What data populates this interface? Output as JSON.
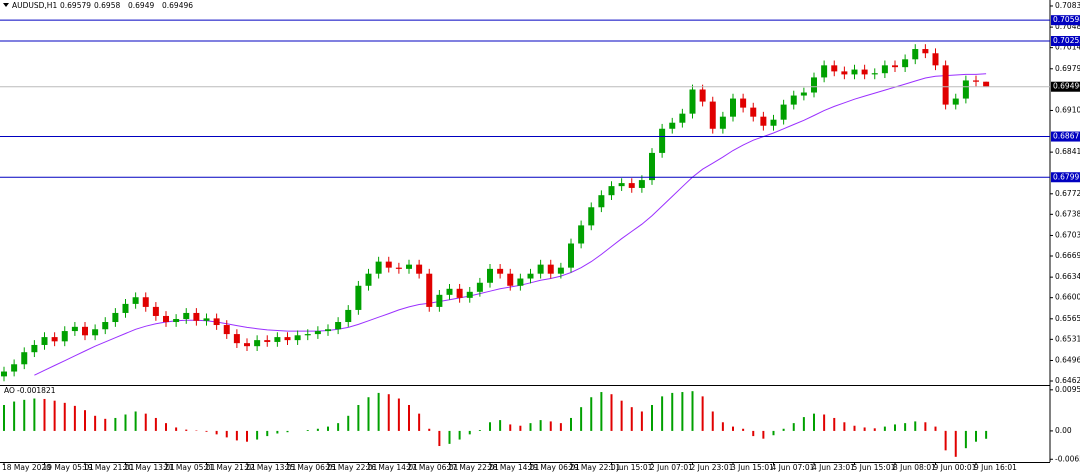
{
  "chart_data": [
    {
      "type": "candlestick",
      "symbol": "AUDUSD,H1",
      "categories": [
        "18 May 2020",
        null,
        null,
        null,
        "19 May 05:01",
        null,
        null,
        null,
        "19 May 21:01",
        null,
        null,
        null,
        "20 May 13:01",
        null,
        null,
        null,
        "21 May 05:01",
        null,
        null,
        null,
        "21 May 21:01",
        null,
        null,
        null,
        "22 May 13:01",
        null,
        null,
        null,
        "25 May 06:01",
        null,
        null,
        null,
        "25 May 22:01",
        null,
        null,
        null,
        "26 May 14:01",
        null,
        null,
        null,
        "27 May 06:01",
        null,
        null,
        null,
        "27 May 22:01",
        null,
        null,
        null,
        "28 May 14:01",
        null,
        null,
        null,
        "29 May 06:01",
        null,
        null,
        null,
        "29 May 22:01",
        null,
        null,
        null,
        "1 Jun 15:01",
        null,
        null,
        null,
        "2 Jun 07:01",
        null,
        null,
        null,
        "2 Jun 23:01",
        null,
        null,
        null,
        "3 Jun 15:01",
        null,
        null,
        null,
        "4 Jun 07:01",
        null,
        null,
        null,
        "4 Jun 23:01",
        null,
        null,
        null,
        "5 Jun 15:01",
        null,
        null,
        null,
        "8 Jun 08:01",
        null,
        null,
        null,
        "9 Jun 00:01",
        null,
        null,
        null,
        "9 Jun 16:01",
        null
      ],
      "open": [
        0.647,
        0.6478,
        0.649,
        0.651,
        0.6522,
        0.6535,
        0.6528,
        0.6545,
        0.6552,
        0.6538,
        0.6548,
        0.656,
        0.6575,
        0.659,
        0.6601,
        0.6585,
        0.657,
        0.656,
        0.6565,
        0.6575,
        0.6562,
        0.6566,
        0.6555,
        0.654,
        0.6525,
        0.652,
        0.653,
        0.6527,
        0.6535,
        0.653,
        0.6538,
        0.654,
        0.6545,
        0.6548,
        0.656,
        0.658,
        0.662,
        0.664,
        0.666,
        0.665,
        0.6648,
        0.6655,
        0.664,
        0.6585,
        0.6605,
        0.6615,
        0.66,
        0.661,
        0.6625,
        0.6648,
        0.664,
        0.662,
        0.6632,
        0.664,
        0.6655,
        0.664,
        0.665,
        0.669,
        0.672,
        0.675,
        0.677,
        0.6785,
        0.679,
        0.6782,
        0.6795,
        0.684,
        0.688,
        0.689,
        0.6905,
        0.6945,
        0.6925,
        0.688,
        0.69,
        0.693,
        0.6915,
        0.69,
        0.6885,
        0.6895,
        0.692,
        0.6935,
        0.694,
        0.6965,
        0.6985,
        0.6975,
        0.697,
        0.6978,
        0.697,
        0.6972,
        0.6985,
        0.6982,
        0.6995,
        0.7012,
        0.7005,
        0.6985,
        0.692,
        0.693,
        0.696,
        0.69579
      ],
      "high": [
        0.6486,
        0.6498,
        0.6518,
        0.653,
        0.6543,
        0.6543,
        0.6553,
        0.656,
        0.656,
        0.6556,
        0.6568,
        0.6583,
        0.6598,
        0.6609,
        0.6609,
        0.6593,
        0.6578,
        0.6573,
        0.6583,
        0.6583,
        0.6574,
        0.6574,
        0.6563,
        0.6548,
        0.6533,
        0.6538,
        0.6538,
        0.6543,
        0.6543,
        0.6546,
        0.6548,
        0.6553,
        0.6556,
        0.6568,
        0.6588,
        0.6628,
        0.6648,
        0.6668,
        0.6668,
        0.6658,
        0.6663,
        0.6663,
        0.6648,
        0.6613,
        0.6623,
        0.6623,
        0.6618,
        0.6633,
        0.6656,
        0.6656,
        0.6648,
        0.664,
        0.6648,
        0.6663,
        0.6663,
        0.6658,
        0.6698,
        0.6728,
        0.6758,
        0.6778,
        0.6793,
        0.6798,
        0.6798,
        0.6803,
        0.6848,
        0.6888,
        0.6898,
        0.6913,
        0.6953,
        0.6953,
        0.6933,
        0.6908,
        0.6938,
        0.6938,
        0.6923,
        0.6908,
        0.6903,
        0.6928,
        0.6943,
        0.6948,
        0.6973,
        0.6993,
        0.6993,
        0.6983,
        0.6986,
        0.6986,
        0.698,
        0.6993,
        0.6993,
        0.7003,
        0.702,
        0.702,
        0.7013,
        0.6993,
        0.6938,
        0.6968,
        0.6968,
        0.6958
      ],
      "low": [
        0.6462,
        0.647,
        0.6482,
        0.6502,
        0.6514,
        0.652,
        0.652,
        0.6537,
        0.653,
        0.653,
        0.654,
        0.6552,
        0.6567,
        0.6582,
        0.6577,
        0.6562,
        0.6552,
        0.6552,
        0.6557,
        0.6554,
        0.6554,
        0.6547,
        0.6532,
        0.6517,
        0.6512,
        0.6512,
        0.6519,
        0.6519,
        0.6522,
        0.6522,
        0.653,
        0.6532,
        0.6537,
        0.654,
        0.6552,
        0.6572,
        0.6612,
        0.6632,
        0.6642,
        0.664,
        0.664,
        0.6632,
        0.6577,
        0.6577,
        0.6597,
        0.6592,
        0.6592,
        0.6602,
        0.6617,
        0.6632,
        0.6612,
        0.6612,
        0.6624,
        0.6632,
        0.6632,
        0.6632,
        0.6642,
        0.6682,
        0.6712,
        0.6742,
        0.6762,
        0.6777,
        0.6774,
        0.6774,
        0.6787,
        0.6832,
        0.6872,
        0.6882,
        0.6897,
        0.6917,
        0.6872,
        0.6872,
        0.6892,
        0.6907,
        0.6892,
        0.6877,
        0.6877,
        0.6887,
        0.6912,
        0.6927,
        0.6932,
        0.6957,
        0.6967,
        0.6962,
        0.6962,
        0.6962,
        0.6962,
        0.6964,
        0.6974,
        0.6974,
        0.6987,
        0.6997,
        0.6977,
        0.6912,
        0.6912,
        0.6922,
        0.695,
        0.6949
      ],
      "close": [
        0.6478,
        0.649,
        0.651,
        0.6522,
        0.6535,
        0.6528,
        0.6545,
        0.6552,
        0.6538,
        0.6548,
        0.656,
        0.6575,
        0.659,
        0.6601,
        0.6585,
        0.657,
        0.656,
        0.6565,
        0.6575,
        0.6562,
        0.6566,
        0.6555,
        0.654,
        0.6525,
        0.652,
        0.653,
        0.6527,
        0.6535,
        0.653,
        0.6538,
        0.654,
        0.6545,
        0.6548,
        0.656,
        0.658,
        0.662,
        0.664,
        0.666,
        0.665,
        0.6648,
        0.6655,
        0.664,
        0.6585,
        0.6605,
        0.6615,
        0.66,
        0.661,
        0.6625,
        0.6648,
        0.664,
        0.662,
        0.6632,
        0.664,
        0.6655,
        0.664,
        0.665,
        0.669,
        0.672,
        0.675,
        0.677,
        0.6785,
        0.679,
        0.6782,
        0.6795,
        0.684,
        0.688,
        0.689,
        0.6905,
        0.6945,
        0.6925,
        0.688,
        0.69,
        0.693,
        0.6915,
        0.69,
        0.6885,
        0.6895,
        0.692,
        0.6935,
        0.694,
        0.6965,
        0.6985,
        0.6975,
        0.697,
        0.6978,
        0.697,
        0.6972,
        0.6985,
        0.6982,
        0.6995,
        0.7012,
        0.7005,
        0.6985,
        0.692,
        0.693,
        0.696,
        0.69579,
        0.69496
      ],
      "up_color": "#00a000",
      "down_color": "#e00000",
      "series": [
        {
          "color": "#9b30ff",
          "values": [
            null,
            null,
            null,
            0.6472,
            0.648,
            0.6488,
            0.6496,
            0.6504,
            0.6512,
            0.652,
            0.6527,
            0.6534,
            0.6541,
            0.6548,
            0.6553,
            0.6557,
            0.656,
            0.6562,
            0.6563,
            0.6563,
            0.6562,
            0.656,
            0.6557,
            0.6554,
            0.6551,
            0.6549,
            0.6547,
            0.6546,
            0.6545,
            0.6545,
            0.6545,
            0.6545,
            0.6546,
            0.6548,
            0.6551,
            0.6556,
            0.6562,
            0.6568,
            0.6574,
            0.658,
            0.6585,
            0.6589,
            0.6591,
            0.6594,
            0.6597,
            0.66,
            0.6603,
            0.6607,
            0.6611,
            0.6615,
            0.6618,
            0.6621,
            0.6625,
            0.6629,
            0.6632,
            0.6636,
            0.6642,
            0.665,
            0.666,
            0.6672,
            0.6685,
            0.6698,
            0.671,
            0.6722,
            0.6736,
            0.6752,
            0.6768,
            0.6784,
            0.68,
            0.6813,
            0.6823,
            0.6833,
            0.6844,
            0.6853,
            0.6861,
            0.6867,
            0.6873,
            0.688,
            0.6887,
            0.6894,
            0.6902,
            0.691,
            0.6917,
            0.6923,
            0.6929,
            0.6934,
            0.6939,
            0.6944,
            0.6949,
            0.6954,
            0.6959,
            0.6964,
            0.6967,
            0.6968,
            0.6969,
            0.697,
            0.697,
            0.6971
          ]
        }
      ],
      "levels": {
        "color": "#0000c0",
        "values": [
          0.70598,
          0.70253,
          0.68671,
          0.67997
        ]
      },
      "ylim": [
        0.64557,
        0.70932
      ],
      "yticks": [
        0.70833,
        0.70483,
        0.70143,
        0.69793,
        0.69103,
        0.68413,
        0.67723,
        0.67383,
        0.67033,
        0.66693,
        0.66343,
        0.66003,
        0.65653,
        0.65313,
        0.64963,
        0.64623
      ],
      "grid": false
    },
    {
      "type": "histogram",
      "title": "AO",
      "values": [
        0.006,
        0.0068,
        0.0072,
        0.0075,
        0.0074,
        0.007,
        0.0065,
        0.0058,
        0.0048,
        0.0035,
        0.0028,
        0.003,
        0.0038,
        0.0045,
        0.004,
        0.003,
        0.0018,
        0.0008,
        0.0003,
        0.0001,
        -0.0002,
        -0.0008,
        -0.0015,
        -0.0022,
        -0.0025,
        -0.002,
        -0.0012,
        -0.0006,
        -0.0003,
        0.0,
        0.0002,
        0.0005,
        0.001,
        0.0018,
        0.0035,
        0.006,
        0.0078,
        0.0088,
        0.0085,
        0.0075,
        0.006,
        0.004,
        0.0005,
        -0.0035,
        -0.003,
        -0.002,
        -0.0008,
        0.0002,
        0.002,
        0.0025,
        0.0015,
        0.0012,
        0.0018,
        0.0025,
        0.0022,
        0.0018,
        0.003,
        0.0055,
        0.0078,
        0.009,
        0.0085,
        0.007,
        0.0055,
        0.0045,
        0.006,
        0.008,
        0.0088,
        0.009,
        0.0092,
        0.008,
        0.0045,
        0.002,
        0.001,
        0.0005,
        -0.0012,
        -0.0018,
        -0.001,
        0.0005,
        0.0018,
        0.0032,
        0.004,
        0.0038,
        0.003,
        0.002,
        0.0012,
        0.0008,
        0.0006,
        0.001,
        0.0015,
        0.0018,
        0.0022,
        0.002,
        0.001,
        -0.0045,
        -0.006,
        -0.004,
        -0.0025,
        -0.001821
      ],
      "up_color": "#00a000",
      "down_color": "#e00000",
      "ylim": [
        -0.0072,
        0.0104
      ],
      "yticks": [
        0.009514,
        {
          "value": 0,
          "label": "0.00"
        },
        -0.006565
      ]
    }
  ]
}
